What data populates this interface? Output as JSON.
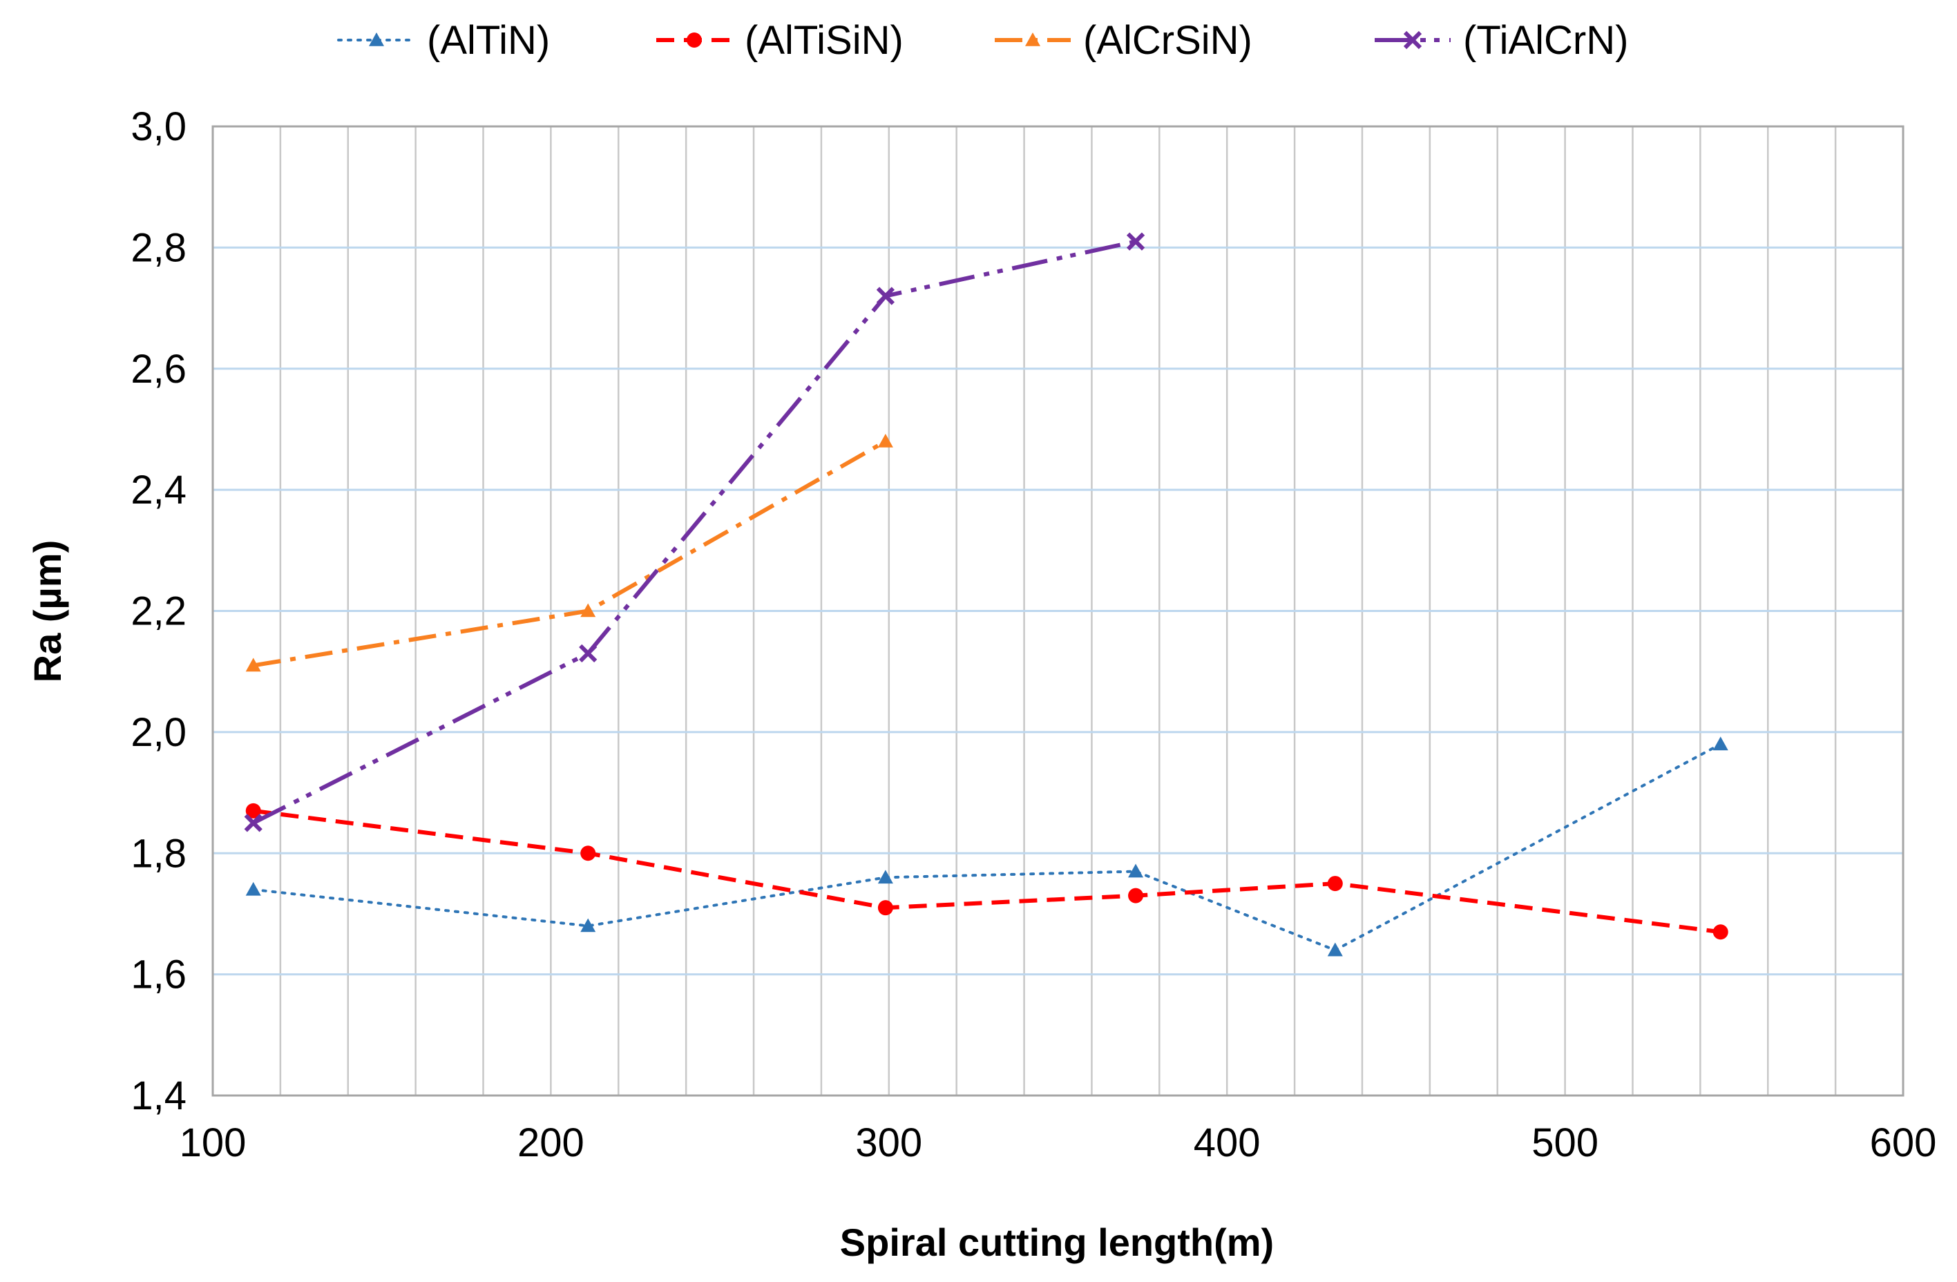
{
  "chart_data": {
    "type": "line",
    "title": "",
    "xlabel": "Spiral cutting length(m)",
    "ylabel": "Ra (µm)",
    "xlim": [
      100,
      600
    ],
    "ylim": [
      1.4,
      3.0
    ],
    "x_major_ticks": [
      100,
      200,
      300,
      400,
      500,
      600
    ],
    "x_minor_step": 20,
    "y_ticks": [
      1.4,
      1.6,
      1.8,
      2.0,
      2.2,
      2.4,
      2.6,
      2.8,
      3.0
    ],
    "y_tick_labels": [
      "1,4",
      "1,6",
      "1,8",
      "2,0",
      "2,2",
      "2,4",
      "2,6",
      "2,8",
      "3,0"
    ],
    "x_tick_labels": [
      "100",
      "200",
      "300",
      "400",
      "500",
      "600"
    ],
    "grid": true,
    "legend_position": "top",
    "series": [
      {
        "name": "(AlTiN)",
        "color": "#2E75B6",
        "line_style": "dotted",
        "marker": "triangle",
        "x": [
          112,
          211,
          299,
          373,
          432,
          546
        ],
        "y": [
          1.74,
          1.68,
          1.76,
          1.77,
          1.64,
          1.98
        ]
      },
      {
        "name": "(AlTiSiN)",
        "color": "#FF0000",
        "line_style": "dashed",
        "marker": "circle",
        "x": [
          112,
          211,
          299,
          373,
          432,
          546
        ],
        "y": [
          1.87,
          1.8,
          1.71,
          1.73,
          1.75,
          1.67
        ]
      },
      {
        "name": "(AlCrSiN)",
        "color": "#F98020",
        "line_style": "dash-dot",
        "marker": "triangle",
        "x": [
          112,
          211,
          299
        ],
        "y": [
          2.11,
          2.2,
          2.48
        ]
      },
      {
        "name": "(TiAlCrN)",
        "color": "#7030A0",
        "line_style": "dash-dot-dot",
        "marker": "x",
        "x": [
          112,
          211,
          299,
          373
        ],
        "y": [
          1.85,
          2.13,
          2.72,
          2.81
        ]
      }
    ]
  }
}
